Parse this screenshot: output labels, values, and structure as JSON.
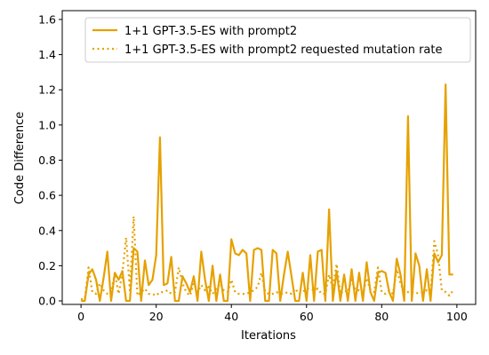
{
  "chart_data": {
    "type": "line",
    "title": "",
    "xlabel": "Iterations",
    "ylabel": "Code Difference",
    "xlim": [
      -5,
      105
    ],
    "ylim": [
      -0.02,
      1.65
    ],
    "xticks": [
      0,
      20,
      40,
      60,
      80,
      100
    ],
    "xtick_labels": [
      "0",
      "20",
      "40",
      "60",
      "80",
      "100"
    ],
    "yticks": [
      0.0,
      0.2,
      0.4,
      0.6,
      0.8,
      1.0,
      1.2,
      1.4,
      1.6
    ],
    "ytick_labels": [
      "0.0",
      "0.2",
      "0.4",
      "0.6",
      "0.8",
      "1.0",
      "1.2",
      "1.4",
      "1.6"
    ],
    "grid": false,
    "legend_position": "top-right",
    "series": [
      {
        "name": "1+1 GPT-3.5-ES with prompt2",
        "style": "solid",
        "color": "#e6a100",
        "x": [
          0,
          1,
          2,
          3,
          4,
          5,
          6,
          7,
          8,
          9,
          10,
          11,
          12,
          13,
          14,
          15,
          16,
          17,
          18,
          19,
          20,
          21,
          22,
          23,
          24,
          25,
          26,
          27,
          28,
          29,
          30,
          31,
          32,
          33,
          34,
          35,
          36,
          37,
          38,
          39,
          40,
          41,
          42,
          43,
          44,
          45,
          46,
          47,
          48,
          49,
          50,
          51,
          52,
          53,
          54,
          55,
          56,
          57,
          58,
          59,
          60,
          61,
          62,
          63,
          64,
          65,
          66,
          67,
          68,
          69,
          70,
          71,
          72,
          73,
          74,
          75,
          76,
          77,
          78,
          79,
          80,
          81,
          82,
          83,
          84,
          85,
          86,
          87,
          88,
          89,
          90,
          91,
          92,
          93,
          94,
          95,
          96,
          97,
          98,
          99
        ],
        "y": [
          0.0,
          0.0,
          0.15,
          0.18,
          0.12,
          0.0,
          0.13,
          0.28,
          0.0,
          0.16,
          0.12,
          0.17,
          0.0,
          0.0,
          0.3,
          0.28,
          0.0,
          0.23,
          0.09,
          0.12,
          0.26,
          0.93,
          0.09,
          0.1,
          0.25,
          0.0,
          0.0,
          0.14,
          0.1,
          0.05,
          0.14,
          0.0,
          0.28,
          0.12,
          0.0,
          0.2,
          0.0,
          0.15,
          0.0,
          0.0,
          0.35,
          0.27,
          0.26,
          0.29,
          0.27,
          0.0,
          0.29,
          0.3,
          0.29,
          0.0,
          0.0,
          0.29,
          0.27,
          0.0,
          0.15,
          0.28,
          0.14,
          0.0,
          0.0,
          0.16,
          0.0,
          0.26,
          0.0,
          0.28,
          0.29,
          0.0,
          0.52,
          0.0,
          0.17,
          0.0,
          0.15,
          0.0,
          0.18,
          0.0,
          0.16,
          0.0,
          0.22,
          0.05,
          0.0,
          0.16,
          0.17,
          0.16,
          0.05,
          0.0,
          0.24,
          0.15,
          0.0,
          1.05,
          0.0,
          0.27,
          0.2,
          0.0,
          0.18,
          0.0,
          0.27,
          0.22,
          0.26,
          1.23,
          0.15,
          0.15
        ]
      },
      {
        "name": "1+1 GPT-3.5-ES with prompt2 requested mutation rate",
        "style": "dotted",
        "color": "#e6a100",
        "x": [
          0,
          1,
          2,
          3,
          4,
          5,
          6,
          7,
          8,
          9,
          10,
          11,
          12,
          13,
          14,
          15,
          16,
          17,
          18,
          19,
          20,
          21,
          22,
          23,
          24,
          25,
          26,
          27,
          28,
          29,
          30,
          31,
          32,
          33,
          34,
          35,
          36,
          37,
          38,
          39,
          40,
          41,
          42,
          43,
          44,
          45,
          46,
          47,
          48,
          49,
          50,
          51,
          52,
          53,
          54,
          55,
          56,
          57,
          58,
          59,
          60,
          61,
          62,
          63,
          64,
          65,
          66,
          67,
          68,
          69,
          70,
          71,
          72,
          73,
          74,
          75,
          76,
          77,
          78,
          79,
          80,
          81,
          82,
          83,
          84,
          85,
          86,
          87,
          88,
          89,
          90,
          91,
          92,
          93,
          94,
          95,
          96,
          97,
          98,
          99
        ],
        "y": [
          0.01,
          0.01,
          0.19,
          0.05,
          0.04,
          0.1,
          0.06,
          0.04,
          0.04,
          0.16,
          0.04,
          0.16,
          0.36,
          0.06,
          0.48,
          0.03,
          0.05,
          0.07,
          0.04,
          0.04,
          0.03,
          0.05,
          0.05,
          0.06,
          0.04,
          0.05,
          0.19,
          0.1,
          0.05,
          0.03,
          0.1,
          0.05,
          0.09,
          0.06,
          0.08,
          0.04,
          0.07,
          0.1,
          0.06,
          0.05,
          0.12,
          0.05,
          0.04,
          0.04,
          0.04,
          0.05,
          0.06,
          0.08,
          0.16,
          0.05,
          0.04,
          0.04,
          0.05,
          0.04,
          0.04,
          0.05,
          0.04,
          0.07,
          0.04,
          0.05,
          0.07,
          0.07,
          0.06,
          0.07,
          0.04,
          0.04,
          0.15,
          0.07,
          0.21,
          0.04,
          0.06,
          0.05,
          0.12,
          0.06,
          0.06,
          0.04,
          0.13,
          0.06,
          0.05,
          0.19,
          0.05,
          0.04,
          0.06,
          0.04,
          0.18,
          0.1,
          0.05,
          0.05,
          0.05,
          0.04,
          0.05,
          0.05,
          0.06,
          0.04,
          0.34,
          0.26,
          0.06,
          0.05,
          0.03,
          0.06
        ]
      }
    ]
  }
}
